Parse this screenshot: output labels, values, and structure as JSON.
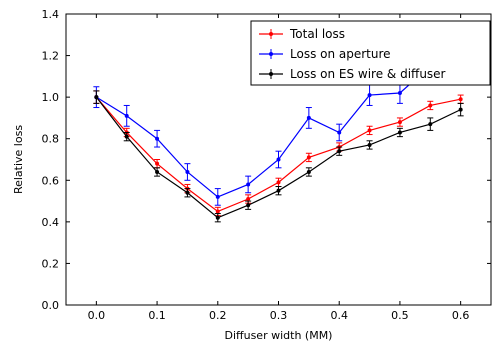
{
  "chart_data": {
    "type": "line",
    "title": "",
    "xlabel": "Diffuser width (MM)",
    "ylabel": "Relative loss",
    "xlim": [
      -0.05,
      0.65
    ],
    "ylim": [
      0.0,
      1.4
    ],
    "xticks": [
      "0.0",
      "0.1",
      "0.2",
      "0.3",
      "0.4",
      "0.5",
      "0.6"
    ],
    "yticks": [
      "0.0",
      "0.2",
      "0.4",
      "0.6",
      "0.8",
      "1.0",
      "1.2",
      "1.4"
    ],
    "grid": false,
    "legend_position": "top-right",
    "x": [
      0.0,
      0.05,
      0.1,
      0.15,
      0.2,
      0.25,
      0.3,
      0.35,
      0.4,
      0.45,
      0.5,
      0.55,
      0.6
    ],
    "series": [
      {
        "name": "Total loss",
        "color": "#ff0000",
        "values": [
          1.0,
          0.83,
          0.68,
          0.56,
          0.45,
          0.51,
          0.59,
          0.71,
          0.76,
          0.84,
          0.88,
          0.96,
          0.99
        ],
        "errors": [
          0.03,
          0.02,
          0.02,
          0.02,
          0.02,
          0.02,
          0.02,
          0.02,
          0.02,
          0.02,
          0.02,
          0.02,
          0.02
        ]
      },
      {
        "name": "Loss on aperture",
        "color": "#0000ff",
        "values": [
          1.0,
          0.91,
          0.8,
          0.64,
          0.52,
          0.58,
          0.7,
          0.9,
          0.83,
          1.01,
          1.02,
          1.15,
          1.15
        ],
        "errors": [
          0.05,
          0.05,
          0.04,
          0.04,
          0.04,
          0.04,
          0.04,
          0.05,
          0.04,
          0.05,
          0.05,
          0.05,
          0.05
        ]
      },
      {
        "name": "Loss on ES wire & diffuser",
        "color": "#000000",
        "values": [
          1.0,
          0.81,
          0.64,
          0.54,
          0.42,
          0.48,
          0.55,
          0.64,
          0.74,
          0.77,
          0.83,
          0.87,
          0.94
        ],
        "errors": [
          0.03,
          0.02,
          0.02,
          0.02,
          0.02,
          0.02,
          0.02,
          0.02,
          0.02,
          0.02,
          0.02,
          0.03,
          0.03
        ]
      }
    ]
  }
}
